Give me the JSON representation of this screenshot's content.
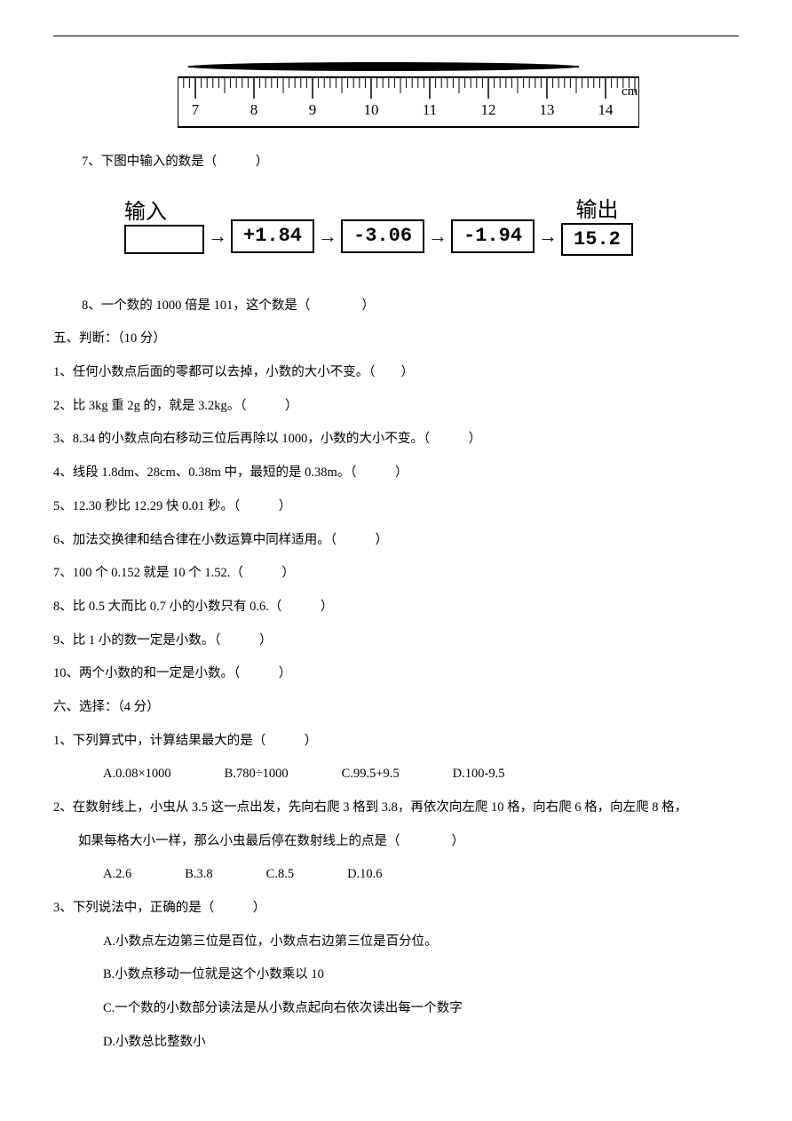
{
  "ruler": {
    "labels": [
      "7",
      "8",
      "9",
      "10",
      "11",
      "12",
      "13",
      "14"
    ],
    "unit": "cm"
  },
  "q7": {
    "text": "7、下图中输入的数是（　　　）"
  },
  "flow": {
    "in_label": "输入",
    "out_label": "输出",
    "boxes": [
      "",
      "+1.84",
      "-3.06",
      "-1.94",
      "15.2"
    ]
  },
  "q8": {
    "text": "8、一个数的 1000 倍是 101，这个数是（　　　　）"
  },
  "sec5": {
    "heading": "五、判断：（10 分）",
    "items": [
      "1、任何小数点后面的零都可以去掉，小数的大小不变。（　　）",
      "2、比 3kg 重 2g 的，就是 3.2kg。（　　　）",
      "3、8.34 的小数点向右移动三位后再除以 1000，小数的大小不变。（　　　）",
      "4、线段 1.8dm、28cm、0.38m 中，最短的是 0.38m。（　　　）",
      "5、12.30 秒比 12.29 快 0.01 秒。（　　　）",
      "6、加法交换律和结合律在小数运算中同样适用。（　　　）",
      "7、100 个 0.152 就是 10 个 1.52.（　　　）",
      "8、比 0.5 大而比 0.7 小的小数只有 0.6.（　　　）",
      "9、比 1 小的数一定是小数。（　　　）",
      "10、两个小数的和一定是小数。（　　　）"
    ]
  },
  "sec6": {
    "heading": "六、选择：（4 分）",
    "q1": {
      "stem": "1、下列算式中，计算结果最大的是（　　　）",
      "A": "A.0.08×1000",
      "B": "B.780÷1000",
      "C": "C.99.5+9.5",
      "D": "D.100-9.5"
    },
    "q2": {
      "stem1": "2、在数射线上，小虫从 3.5 这一点出发，先向右爬 3 格到 3.8，再依次向左爬 10 格，向右爬 6 格，向左爬 8 格，",
      "stem2": "如果每格大小一样，那么小虫最后停在数射线上的点是（　　　　）",
      "A": "A.2.6",
      "B": "B.3.8",
      "C": "C.8.5",
      "D": "D.10.6"
    },
    "q3": {
      "stem": "3、下列说法中，正确的是（　　　）",
      "A": "A.小数点左边第三位是百位，小数点右边第三位是百分位。",
      "B": "B.小数点移动一位就是这个小数乘以 10",
      "C": "C.一个数的小数部分读法是从小数点起向右依次读出每一个数字",
      "D": "D.小数总比整数小"
    }
  }
}
